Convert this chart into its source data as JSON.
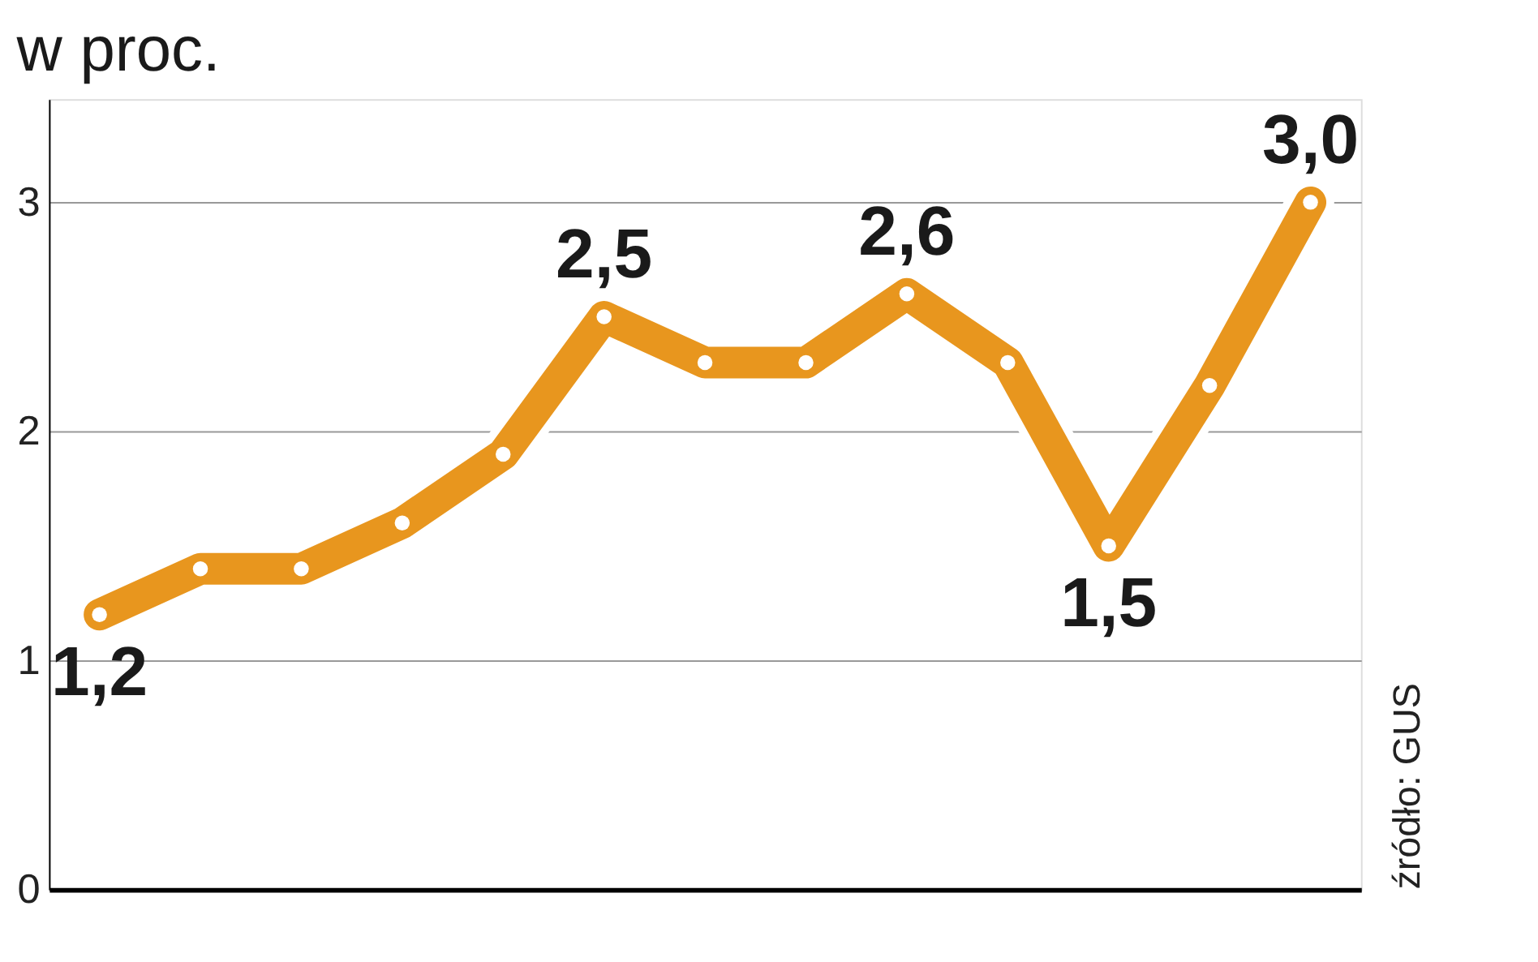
{
  "chart_data": {
    "type": "line",
    "title": "w proc.",
    "categories": [
      null,
      null,
      null,
      null,
      null,
      null,
      null,
      null,
      null,
      null,
      null,
      null,
      null
    ],
    "series": [
      {
        "color": "#e8961e",
        "values": [
          1.2,
          1.4,
          1.4,
          1.6,
          1.9,
          2.5,
          2.3,
          2.3,
          2.6,
          2.3,
          1.5,
          2.2,
          3.0
        ],
        "value_labels": [
          "1,2",
          null,
          null,
          null,
          null,
          "2,5",
          null,
          null,
          "2,6",
          null,
          "1,5",
          null,
          "3,0"
        ]
      }
    ],
    "ylim": [
      0,
      3.45
    ],
    "yticks": [
      0,
      1,
      2,
      3
    ],
    "grid": "y",
    "marker": "circle",
    "line_style": "solid",
    "annotations": [
      "źródło: GUS"
    ]
  }
}
